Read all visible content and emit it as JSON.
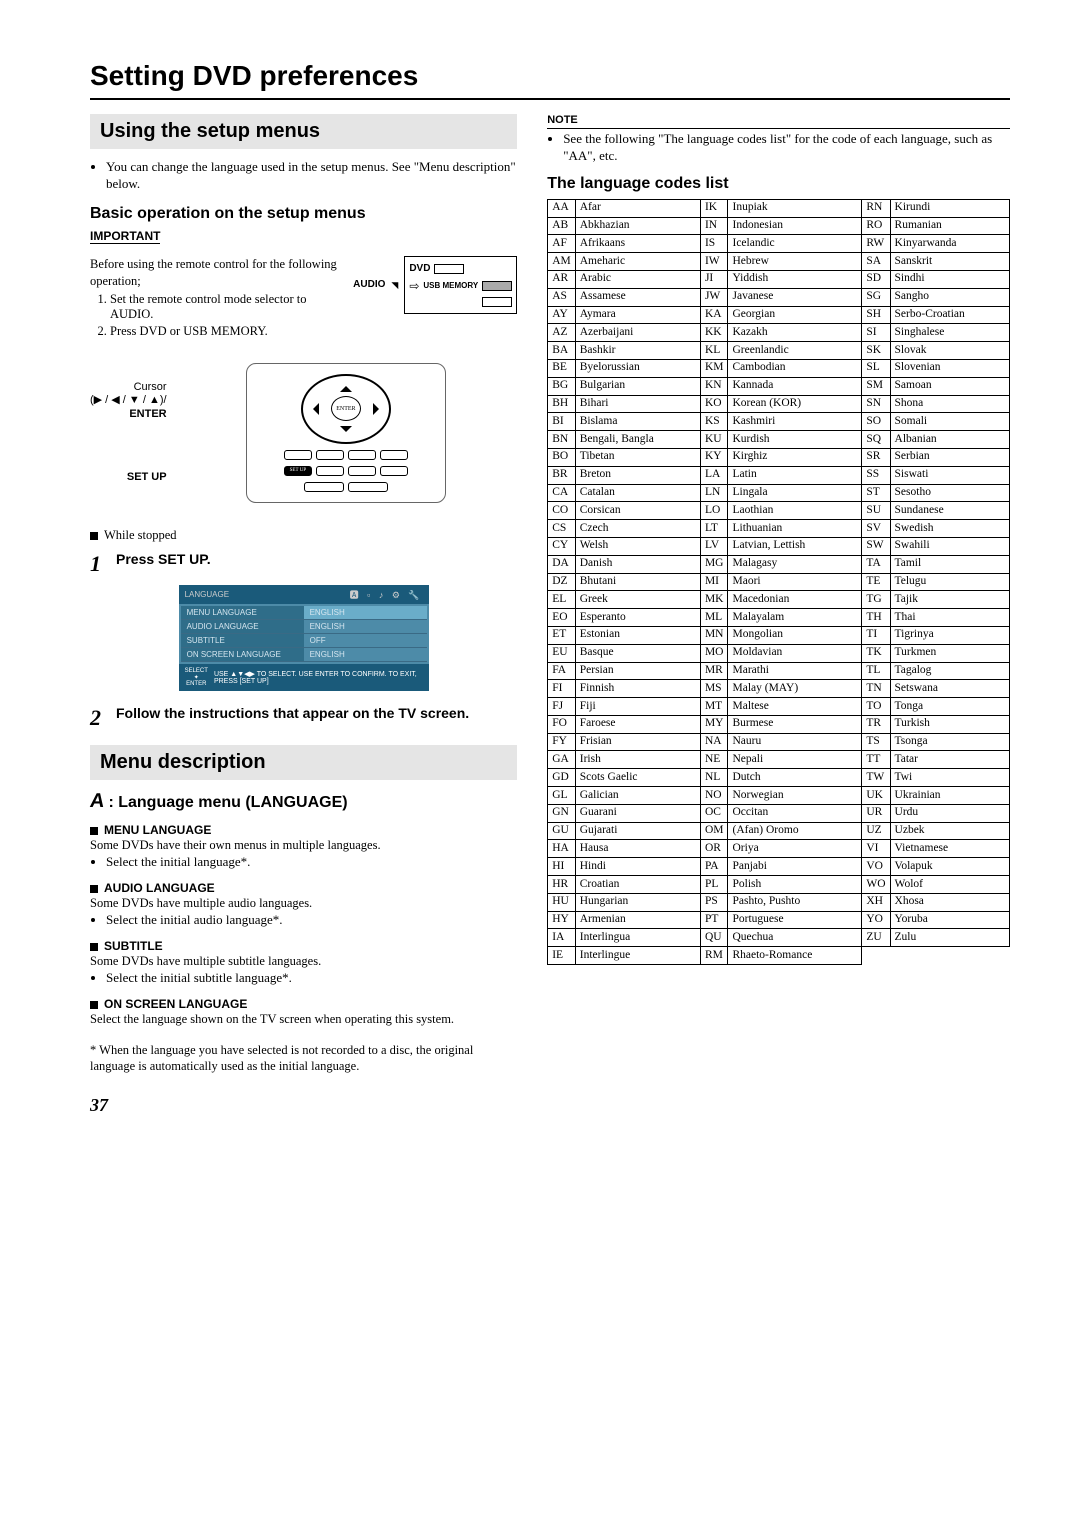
{
  "page_title": "Setting DVD preferences",
  "page_number": "37",
  "left": {
    "section1_title": "Using the setup menus",
    "intro_bullet": "You can change the language used in the setup menus. See \"Menu description\" below.",
    "basic_op_heading": "Basic operation on the setup menus",
    "important_label": "IMPORTANT",
    "important_text": "Before using the remote control for the following operation;",
    "important_steps": [
      "Set the remote control mode selector to AUDIO.",
      "Press DVD or USB MEMORY."
    ],
    "mode_labels": {
      "audio": "AUDIO",
      "dvd": "DVD",
      "usb": "USB MEMORY"
    },
    "remote_labels": {
      "cursor": "Cursor",
      "cursor_sym": "(▶ / ◀ / ▼ / ▲)/",
      "enter": "ENTER",
      "setup": "SET UP",
      "enter_btn": "ENTER",
      "setup_btn": "SET UP"
    },
    "while_stopped": "While stopped",
    "step1": "Press SET UP.",
    "step2": "Follow the instructions that appear on the TV screen.",
    "osd": {
      "tab": "LANGUAGE",
      "rows": [
        {
          "l": "MENU LANGUAGE",
          "r": "ENGLISH",
          "hl": true
        },
        {
          "l": "AUDIO LANGUAGE",
          "r": "ENGLISH",
          "hl": false
        },
        {
          "l": "SUBTITLE",
          "r": "OFF",
          "hl": false
        },
        {
          "l": "ON SCREEN LANGUAGE",
          "r": "ENGLISH",
          "hl": false
        }
      ],
      "footer_select": "SELECT",
      "footer_enter": "ENTER",
      "footer_text": "USE ▲▼◀▶ TO SELECT.  USE ENTER TO CONFIRM. TO EXIT, PRESS [SET UP]"
    },
    "section2_title": "Menu description",
    "lang_menu_heading": ": Language menu (LANGUAGE)",
    "menu_items": [
      {
        "head": "MENU LANGUAGE",
        "text": "Some DVDs have their own menus in multiple languages.",
        "sub": "Select the initial language*."
      },
      {
        "head": "AUDIO LANGUAGE",
        "text": "Some DVDs have multiple audio languages.",
        "sub": "Select the initial audio language*."
      },
      {
        "head": "SUBTITLE",
        "text": "Some DVDs have multiple subtitle languages.",
        "sub": "Select the initial subtitle language*."
      },
      {
        "head": "ON SCREEN LANGUAGE",
        "text": "Select the language shown on the TV screen when operating this system.",
        "sub": ""
      }
    ],
    "footnote": "* When the language you have selected is not recorded to a disc, the original language is automatically used as the initial language."
  },
  "right": {
    "note_label": "NOTE",
    "note_text": "See the following \"The language codes list\" for the code of each language, such as \"AA\", etc.",
    "codes_heading": "The language codes list",
    "codes": [
      [
        "AA",
        "Afar",
        "IK",
        "Inupiak",
        "RN",
        "Kirundi"
      ],
      [
        "AB",
        "Abkhazian",
        "IN",
        "Indonesian",
        "RO",
        "Rumanian"
      ],
      [
        "AF",
        "Afrikaans",
        "IS",
        "Icelandic",
        "RW",
        "Kinyarwanda"
      ],
      [
        "AM",
        "Ameharic",
        "IW",
        "Hebrew",
        "SA",
        "Sanskrit"
      ],
      [
        "AR",
        "Arabic",
        "JI",
        "Yiddish",
        "SD",
        "Sindhi"
      ],
      [
        "AS",
        "Assamese",
        "JW",
        "Javanese",
        "SG",
        "Sangho"
      ],
      [
        "AY",
        "Aymara",
        "KA",
        "Georgian",
        "SH",
        "Serbo-Croatian"
      ],
      [
        "AZ",
        "Azerbaijani",
        "KK",
        "Kazakh",
        "SI",
        "Singhalese"
      ],
      [
        "BA",
        "Bashkir",
        "KL",
        "Greenlandic",
        "SK",
        "Slovak"
      ],
      [
        "BE",
        "Byelorussian",
        "KM",
        "Cambodian",
        "SL",
        "Slovenian"
      ],
      [
        "BG",
        "Bulgarian",
        "KN",
        "Kannada",
        "SM",
        "Samoan"
      ],
      [
        "BH",
        "Bihari",
        "KO",
        "Korean (KOR)",
        "SN",
        "Shona"
      ],
      [
        "BI",
        "Bislama",
        "KS",
        "Kashmiri",
        "SO",
        "Somali"
      ],
      [
        "BN",
        "Bengali, Bangla",
        "KU",
        "Kurdish",
        "SQ",
        "Albanian"
      ],
      [
        "BO",
        "Tibetan",
        "KY",
        "Kirghiz",
        "SR",
        "Serbian"
      ],
      [
        "BR",
        "Breton",
        "LA",
        "Latin",
        "SS",
        "Siswati"
      ],
      [
        "CA",
        "Catalan",
        "LN",
        "Lingala",
        "ST",
        "Sesotho"
      ],
      [
        "CO",
        "Corsican",
        "LO",
        "Laothian",
        "SU",
        "Sundanese"
      ],
      [
        "CS",
        "Czech",
        "LT",
        "Lithuanian",
        "SV",
        "Swedish"
      ],
      [
        "CY",
        "Welsh",
        "LV",
        "Latvian, Lettish",
        "SW",
        "Swahili"
      ],
      [
        "DA",
        "Danish",
        "MG",
        "Malagasy",
        "TA",
        "Tamil"
      ],
      [
        "DZ",
        "Bhutani",
        "MI",
        "Maori",
        "TE",
        "Telugu"
      ],
      [
        "EL",
        "Greek",
        "MK",
        "Macedonian",
        "TG",
        "Tajik"
      ],
      [
        "EO",
        "Esperanto",
        "ML",
        "Malayalam",
        "TH",
        "Thai"
      ],
      [
        "ET",
        "Estonian",
        "MN",
        "Mongolian",
        "TI",
        "Tigrinya"
      ],
      [
        "EU",
        "Basque",
        "MO",
        "Moldavian",
        "TK",
        "Turkmen"
      ],
      [
        "FA",
        "Persian",
        "MR",
        "Marathi",
        "TL",
        "Tagalog"
      ],
      [
        "FI",
        "Finnish",
        "MS",
        "Malay (MAY)",
        "TN",
        "Setswana"
      ],
      [
        "FJ",
        "Fiji",
        "MT",
        "Maltese",
        "TO",
        "Tonga"
      ],
      [
        "FO",
        "Faroese",
        "MY",
        "Burmese",
        "TR",
        "Turkish"
      ],
      [
        "FY",
        "Frisian",
        "NA",
        "Nauru",
        "TS",
        "Tsonga"
      ],
      [
        "GA",
        "Irish",
        "NE",
        "Nepali",
        "TT",
        "Tatar"
      ],
      [
        "GD",
        "Scots Gaelic",
        "NL",
        "Dutch",
        "TW",
        "Twi"
      ],
      [
        "GL",
        "Galician",
        "NO",
        "Norwegian",
        "UK",
        "Ukrainian"
      ],
      [
        "GN",
        "Guarani",
        "OC",
        "Occitan",
        "UR",
        "Urdu"
      ],
      [
        "GU",
        "Gujarati",
        "OM",
        "(Afan) Oromo",
        "UZ",
        "Uzbek"
      ],
      [
        "HA",
        "Hausa",
        "OR",
        "Oriya",
        "VI",
        "Vietnamese"
      ],
      [
        "HI",
        "Hindi",
        "PA",
        "Panjabi",
        "VO",
        "Volapuk"
      ],
      [
        "HR",
        "Croatian",
        "PL",
        "Polish",
        "WO",
        "Wolof"
      ],
      [
        "HU",
        "Hungarian",
        "PS",
        "Pashto, Pushto",
        "XH",
        "Xhosa"
      ],
      [
        "HY",
        "Armenian",
        "PT",
        "Portuguese",
        "YO",
        "Yoruba"
      ],
      [
        "IA",
        "Interlingua",
        "QU",
        "Quechua",
        "ZU",
        "Zulu"
      ],
      [
        "IE",
        "Interlingue",
        "RM",
        "Rhaeto-Romance",
        "",
        ""
      ]
    ]
  }
}
